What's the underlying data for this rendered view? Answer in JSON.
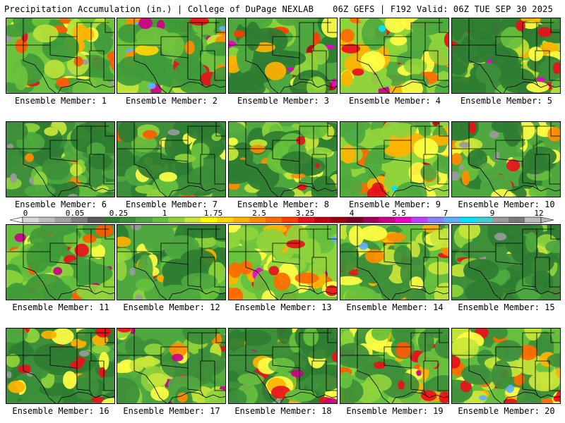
{
  "header": {
    "title_left": "Precipitation Accumulation (in.) | College of DuPage NEXLAB",
    "title_right": "06Z GEFS | F192 Valid: 06Z TUE SEP 30 2025"
  },
  "colorbar": {
    "labels": [
      "0",
      "0.05",
      "0.25",
      "1",
      "1.75",
      "2.5",
      "3.25",
      "4",
      "5.5",
      "7",
      "9",
      "12"
    ],
    "colors": [
      "#d9d9d9",
      "#bdbdbd",
      "#a0a0a0",
      "#7f7f7f",
      "#5a5a5a",
      "#2e7d32",
      "#3d8f3a",
      "#4ea83f",
      "#66c03d",
      "#8fd43c",
      "#c8e63a",
      "#ffff00",
      "#ffd800",
      "#ffb300",
      "#ff8c00",
      "#ff6a00",
      "#ff3c00",
      "#e8101a",
      "#c20012",
      "#9a0010",
      "#780020",
      "#a1005a",
      "#cc0088",
      "#ee00c8",
      "#c040ff",
      "#8a7fff",
      "#5fb0ff",
      "#00e5ff",
      "#40d0d0",
      "#9a9a9a",
      "#7a7a7a",
      "#bcbcbc"
    ]
  },
  "members": [
    {
      "label": "Ensemble Member: 1",
      "palette": [
        "#3f9a3a",
        "#6cc23d",
        "#b9e23a",
        "#ffff44",
        "#ffb300",
        "#ff5a00",
        "#e01020",
        "#9a9a9a"
      ]
    },
    {
      "label": "Ensemble Member: 2",
      "palette": [
        "#3f9a3a",
        "#6cc23d",
        "#c8e63a",
        "#ffd800",
        "#ff8c00",
        "#e8101a",
        "#cc0088",
        "#5fb0ff"
      ]
    },
    {
      "label": "Ensemble Member: 3",
      "palette": [
        "#2e7d32",
        "#4ea83f",
        "#8fd43c",
        "#ffff44",
        "#ffb300",
        "#ff3c00",
        "#c20012",
        "#ee00c8"
      ]
    },
    {
      "label": "Ensemble Member: 4",
      "palette": [
        "#4ea83f",
        "#8fd43c",
        "#ffff44",
        "#ffb300",
        "#ff6a00",
        "#e8101a",
        "#cc0088",
        "#00e5ff"
      ]
    },
    {
      "label": "Ensemble Member: 5",
      "palette": [
        "#2e7d32",
        "#3d8f3a",
        "#66c03d",
        "#b9e23a",
        "#ffff44",
        "#ffb300",
        "#e8101a",
        "#ee00c8"
      ]
    },
    {
      "label": "Ensemble Member: 6",
      "palette": [
        "#2e7d32",
        "#3d8f3a",
        "#4ea83f",
        "#66c03d",
        "#8fd43c",
        "#c8e63a",
        "#ff8c00",
        "#9a9a9a"
      ]
    },
    {
      "label": "Ensemble Member: 7",
      "palette": [
        "#2e7d32",
        "#3d8f3a",
        "#4ea83f",
        "#66c03d",
        "#8fd43c",
        "#ffff44",
        "#ff5a00",
        "#9a9a9a"
      ]
    },
    {
      "label": "Ensemble Member: 8",
      "palette": [
        "#2e7d32",
        "#4ea83f",
        "#66c03d",
        "#8fd43c",
        "#c8e63a",
        "#ffff44",
        "#ff8c00",
        "#e8101a"
      ]
    },
    {
      "label": "Ensemble Member: 9",
      "palette": [
        "#4ea83f",
        "#8fd43c",
        "#ffff44",
        "#ffb300",
        "#ff6a00",
        "#e8101a",
        "#c20012",
        "#00e5ff"
      ]
    },
    {
      "label": "Ensemble Member: 10",
      "palette": [
        "#2e7d32",
        "#4ea83f",
        "#66c03d",
        "#c8e63a",
        "#ffff44",
        "#ff8c00",
        "#e8101a",
        "#9a9a9a"
      ]
    },
    {
      "label": "Ensemble Member: 11",
      "palette": [
        "#3f9a3a",
        "#66c03d",
        "#8fd43c",
        "#ffff44",
        "#ffb300",
        "#ff5a00",
        "#e8101a",
        "#cc0088"
      ]
    },
    {
      "label": "Ensemble Member: 12",
      "palette": [
        "#2e7d32",
        "#4ea83f",
        "#66c03d",
        "#8fd43c",
        "#ffff44",
        "#ffb300",
        "#e8101a",
        "#9a9a9a"
      ]
    },
    {
      "label": "Ensemble Member: 13",
      "palette": [
        "#66c03d",
        "#8fd43c",
        "#ffff44",
        "#ffb300",
        "#ff6a00",
        "#e8101a",
        "#ee00c8",
        "#5fb0ff"
      ]
    },
    {
      "label": "Ensemble Member: 14",
      "palette": [
        "#3d8f3a",
        "#66c03d",
        "#c8e63a",
        "#ffff44",
        "#ffb300",
        "#ff8c00",
        "#e8101a",
        "#5fb0ff"
      ]
    },
    {
      "label": "Ensemble Member: 15",
      "palette": [
        "#2e7d32",
        "#3d8f3a",
        "#4ea83f",
        "#8fd43c",
        "#c8e63a",
        "#ffff44",
        "#e8101a",
        "#9a9a9a"
      ]
    },
    {
      "label": "Ensemble Member: 16",
      "palette": [
        "#2e7d32",
        "#3d8f3a",
        "#4ea83f",
        "#8fd43c",
        "#ffff44",
        "#ffb300",
        "#e8101a",
        "#9a9a9a"
      ]
    },
    {
      "label": "Ensemble Member: 17",
      "palette": [
        "#3d8f3a",
        "#4ea83f",
        "#8fd43c",
        "#c8e63a",
        "#ffff44",
        "#ff8c00",
        "#e8101a",
        "#cc0088"
      ]
    },
    {
      "label": "Ensemble Member: 18",
      "palette": [
        "#2e7d32",
        "#3d8f3a",
        "#66c03d",
        "#ffff44",
        "#ffb300",
        "#e8101a",
        "#cc0088",
        "#9a9a9a"
      ]
    },
    {
      "label": "Ensemble Member: 19",
      "palette": [
        "#3d8f3a",
        "#66c03d",
        "#8fd43c",
        "#ffff44",
        "#ffb300",
        "#ff5a00",
        "#e8101a",
        "#cc0088"
      ]
    },
    {
      "label": "Ensemble Member: 20",
      "palette": [
        "#3d8f3a",
        "#66c03d",
        "#c8e63a",
        "#ffff44",
        "#ffb300",
        "#ff6a00",
        "#e8101a",
        "#5fb0ff"
      ]
    }
  ]
}
